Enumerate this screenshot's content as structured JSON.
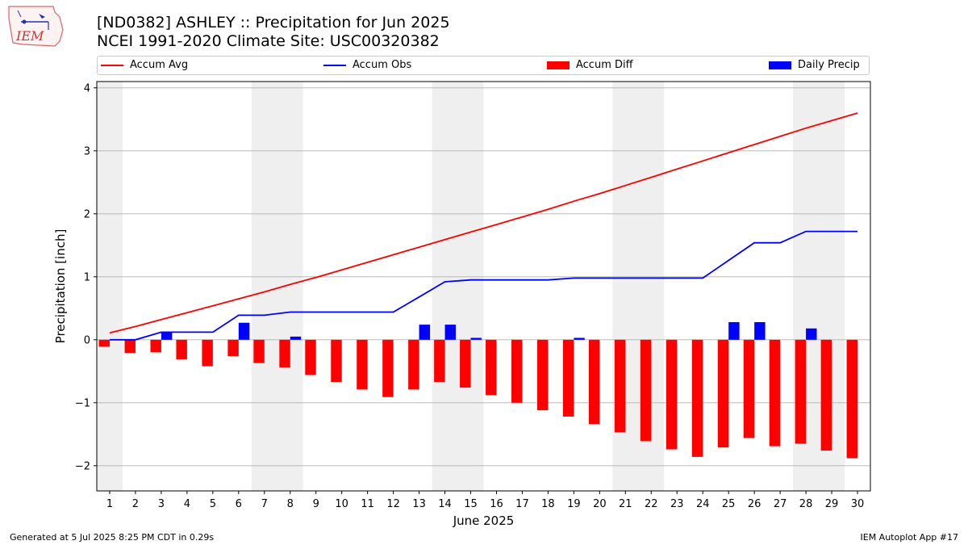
{
  "header": {
    "title_line1": "[ND0382] ASHLEY :: Precipitation for Jun 2025",
    "title_line2": "NCEI 1991-2020 Climate Site: USC00320382",
    "logo_text": "IEM"
  },
  "footer": {
    "generated": "Generated at 5 Jul 2025 8:25 PM CDT in 0.29s",
    "app": "IEM Autoplot App #17"
  },
  "legend": [
    {
      "label": "Accum Avg",
      "kind": "line",
      "color": "#ff0000"
    },
    {
      "label": "Accum Obs",
      "kind": "line",
      "color": "#0000ff"
    },
    {
      "label": "Accum Diff",
      "kind": "bar",
      "color": "#ff0000"
    },
    {
      "label": "Daily Precip",
      "kind": "bar",
      "color": "#0000ff"
    }
  ],
  "chart_data": {
    "type": "bar",
    "xlabel": "June 2025",
    "ylabel": "Precipitation [inch]",
    "x": [
      1,
      2,
      3,
      4,
      5,
      6,
      7,
      8,
      9,
      10,
      11,
      12,
      13,
      14,
      15,
      16,
      17,
      18,
      19,
      20,
      21,
      22,
      23,
      24,
      25,
      26,
      27,
      28,
      29,
      30
    ],
    "ylim": [
      -2.4,
      4.1
    ],
    "yticks": [
      -2,
      -1,
      0,
      1,
      2,
      3,
      4
    ],
    "ytick_labels": [
      "−2",
      "−1",
      "0",
      "1",
      "2",
      "3",
      "4"
    ],
    "grid": "horizontal",
    "weekend_shading": [
      [
        1,
        1
      ],
      [
        7,
        8
      ],
      [
        14,
        15
      ],
      [
        21,
        22
      ],
      [
        28,
        29
      ]
    ],
    "series": [
      {
        "name": "Accum Avg",
        "type": "line",
        "color": "#ff0000",
        "values": [
          0.11,
          0.21,
          0.32,
          0.43,
          0.54,
          0.65,
          0.76,
          0.88,
          0.99,
          1.11,
          1.23,
          1.35,
          1.47,
          1.59,
          1.71,
          1.83,
          1.95,
          2.07,
          2.2,
          2.32,
          2.45,
          2.58,
          2.71,
          2.84,
          2.97,
          3.1,
          3.23,
          3.36,
          3.48,
          3.6
        ]
      },
      {
        "name": "Accum Obs",
        "type": "line",
        "color": "#0000ff",
        "values": [
          0.0,
          0.0,
          0.12,
          0.12,
          0.12,
          0.39,
          0.39,
          0.44,
          0.44,
          0.44,
          0.44,
          0.44,
          0.68,
          0.92,
          0.95,
          0.95,
          0.95,
          0.95,
          0.98,
          0.98,
          0.98,
          0.98,
          0.98,
          0.98,
          1.26,
          1.54,
          1.54,
          1.72,
          1.72,
          1.72
        ]
      },
      {
        "name": "Accum Diff",
        "type": "bar",
        "color": "#ff0000",
        "values": [
          -0.11,
          -0.21,
          -0.2,
          -0.31,
          -0.42,
          -0.26,
          -0.37,
          -0.44,
          -0.56,
          -0.67,
          -0.79,
          -0.91,
          -0.79,
          -0.67,
          -0.76,
          -0.88,
          -1.0,
          -1.12,
          -1.22,
          -1.34,
          -1.47,
          -1.61,
          -1.74,
          -1.86,
          -1.71,
          -1.56,
          -1.69,
          -1.65,
          -1.76,
          -1.88
        ]
      },
      {
        "name": "Daily Precip",
        "type": "bar",
        "color": "#0000ff",
        "values": [
          0.0,
          0.0,
          0.12,
          0.0,
          0.0,
          0.27,
          0.0,
          0.05,
          0.0,
          0.0,
          0.0,
          0.0,
          0.24,
          0.24,
          0.03,
          0.0,
          0.0,
          0.0,
          0.03,
          0.0,
          0.0,
          0.0,
          0.0,
          0.0,
          0.28,
          0.28,
          0.0,
          0.18,
          0.0,
          0.0
        ]
      }
    ]
  }
}
